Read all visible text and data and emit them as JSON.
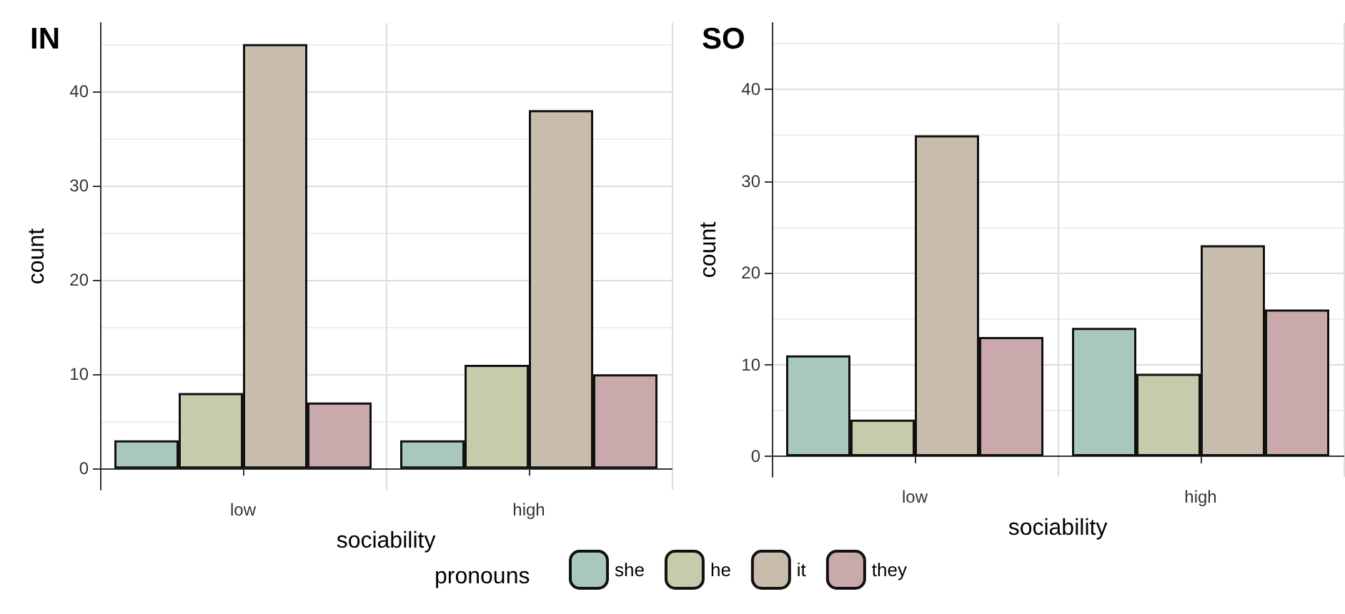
{
  "chart_data": [
    {
      "type": "bar",
      "title": "IN",
      "categories": [
        "low",
        "high"
      ],
      "xlabel": "sociability",
      "ylabel": "count",
      "ylim": [
        -2.25,
        47.25
      ],
      "yticks": [
        0,
        10,
        20,
        30,
        40
      ],
      "grid": true,
      "legend": "bottom",
      "legend_title": "pronouns",
      "series": [
        {
          "name": "she",
          "color": "#a9c8bb",
          "values": [
            3,
            3
          ]
        },
        {
          "name": "he",
          "color": "#c6cbab",
          "values": [
            8,
            11
          ]
        },
        {
          "name": "it",
          "color": "#c8bcac",
          "values": [
            45,
            38
          ]
        },
        {
          "name": "they",
          "color": "#c9a9ab",
          "values": [
            7,
            10
          ]
        }
      ]
    },
    {
      "type": "bar",
      "title": "SO",
      "categories": [
        "low",
        "high"
      ],
      "xlabel": "sociability",
      "ylabel": "count",
      "ylim": [
        -2.25,
        47.25
      ],
      "yticks": [
        0,
        10,
        20,
        30,
        40
      ],
      "grid": true,
      "series": [
        {
          "color": "#a9c8bb",
          "values": [
            11,
            14
          ]
        },
        {
          "color": "#c6cbab",
          "values": [
            4,
            9
          ]
        },
        {
          "color": "#c8bcac",
          "values": [
            35,
            23
          ]
        },
        {
          "color": "#c9a9ab",
          "values": [
            13,
            16
          ]
        }
      ]
    }
  ]
}
